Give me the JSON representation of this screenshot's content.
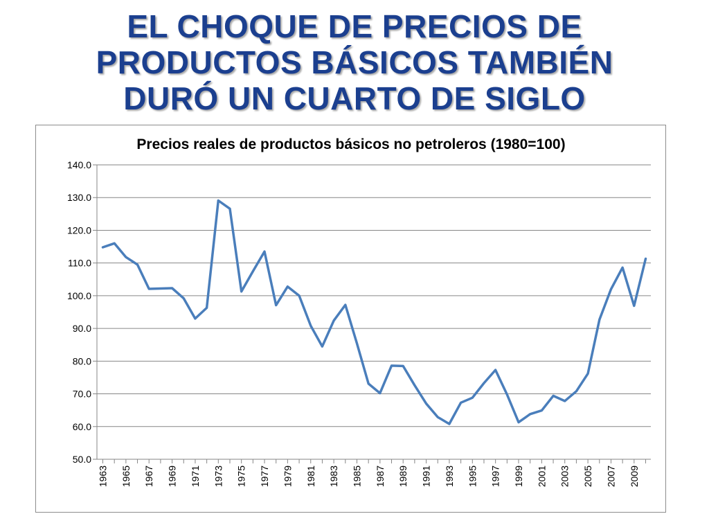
{
  "slide": {
    "title_lines": [
      "EL CHOQUE DE PRECIOS DE",
      "PRODUCTOS BÁSICOS TAMBIÉN",
      "DURÓ UN CUARTO DE SIGLO"
    ]
  },
  "colors": {
    "title": "#1b3f8f",
    "series_line": "#4a7ebb",
    "grid": "#868686"
  },
  "chart_data": {
    "type": "line",
    "title": "Precios reales de productos básicos no petroleros (1980=100)",
    "xlabel": "",
    "ylabel": "",
    "ylim": [
      50,
      140
    ],
    "yticks": [
      "50.0",
      "60.0",
      "70.0",
      "80.0",
      "90.0",
      "100.0",
      "110.0",
      "120.0",
      "130.0",
      "140.0"
    ],
    "grid": true,
    "legend": "none",
    "x": [
      1963,
      1964,
      1965,
      1966,
      1967,
      1968,
      1969,
      1970,
      1971,
      1972,
      1973,
      1974,
      1975,
      1976,
      1977,
      1978,
      1979,
      1980,
      1981,
      1982,
      1983,
      1984,
      1985,
      1986,
      1987,
      1988,
      1989,
      1990,
      1991,
      1992,
      1993,
      1994,
      1995,
      1996,
      1997,
      1998,
      1999,
      2000,
      2001,
      2002,
      2003,
      2004,
      2005,
      2006,
      2007,
      2008,
      2009,
      2010
    ],
    "xticks": [
      "1963",
      "1965",
      "1967",
      "1969",
      "1971",
      "1973",
      "1975",
      "1977",
      "1979",
      "1981",
      "1983",
      "1985",
      "1987",
      "1989",
      "1991",
      "1993",
      "1995",
      "1997",
      "1999",
      "2001",
      "2003",
      "2005",
      "2007",
      "2009"
    ],
    "series": [
      {
        "values": [
          114.8,
          116.0,
          111.8,
          109.5,
          102.1,
          102.2,
          102.3,
          99.2,
          93.0,
          96.3,
          129.1,
          126.6,
          101.3,
          107.5,
          113.5,
          97.1,
          102.8,
          100.0,
          90.8,
          84.5,
          92.4,
          97.2,
          85.4,
          73.1,
          70.2,
          78.6,
          78.5,
          72.6,
          67.0,
          62.9,
          60.8,
          67.3,
          68.8,
          73.3,
          77.3,
          69.8,
          61.3,
          63.8,
          64.9,
          69.4,
          67.8,
          70.8,
          76.2,
          92.7,
          102.0,
          108.6,
          96.9,
          111.3
        ]
      }
    ]
  }
}
